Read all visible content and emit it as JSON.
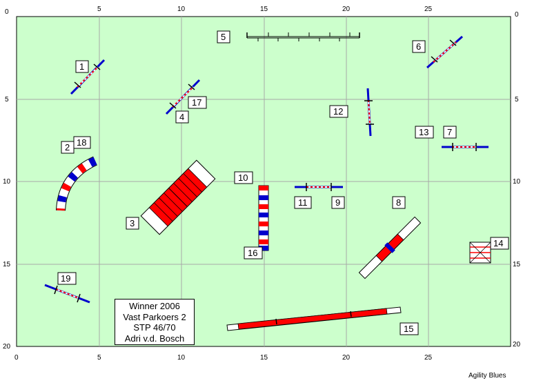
{
  "course": {
    "field_color": "#ccffcc",
    "grid_color": "#a8a8a8",
    "x_ticks": [
      "0",
      "5",
      "10",
      "15",
      "20",
      "25"
    ],
    "y_ticks": [
      "0",
      "5",
      "10",
      "15",
      "20"
    ]
  },
  "obstacles": [
    {
      "kind": "jump",
      "label": "1"
    },
    {
      "kind": "tyre-jump",
      "label": "2"
    },
    {
      "kind": "a-frame",
      "label": "3"
    },
    {
      "kind": "jump",
      "label": "4"
    },
    {
      "kind": "wall-fence",
      "label": "5"
    },
    {
      "kind": "jump",
      "label": "6"
    },
    {
      "kind": "jump",
      "label": "7"
    },
    {
      "kind": "see-saw",
      "label": "8"
    },
    {
      "kind": "jump",
      "label": "9"
    },
    {
      "kind": "weave-poles",
      "label": "10"
    },
    {
      "kind": "jump",
      "label": "11"
    },
    {
      "kind": "jump",
      "label": "12"
    },
    {
      "kind": "jump",
      "label": "13"
    },
    {
      "kind": "table",
      "label": "14"
    },
    {
      "kind": "dog-walk",
      "label": "15"
    },
    {
      "kind": "weave-poles",
      "label": "16"
    },
    {
      "kind": "jump",
      "label": "17"
    },
    {
      "kind": "tyre-jump",
      "label": "18"
    },
    {
      "kind": "jump",
      "label": "19"
    }
  ],
  "info_box": [
    "Winner 2006",
    "Vast Parkoers 2",
    "STP 46/70",
    "Adri v.d. Bosch"
  ],
  "credit": "Agility Blues",
  "colors": {
    "blue": "#0000cc",
    "red": "#ff0000",
    "white": "#ffffff",
    "dark": "#000000"
  }
}
